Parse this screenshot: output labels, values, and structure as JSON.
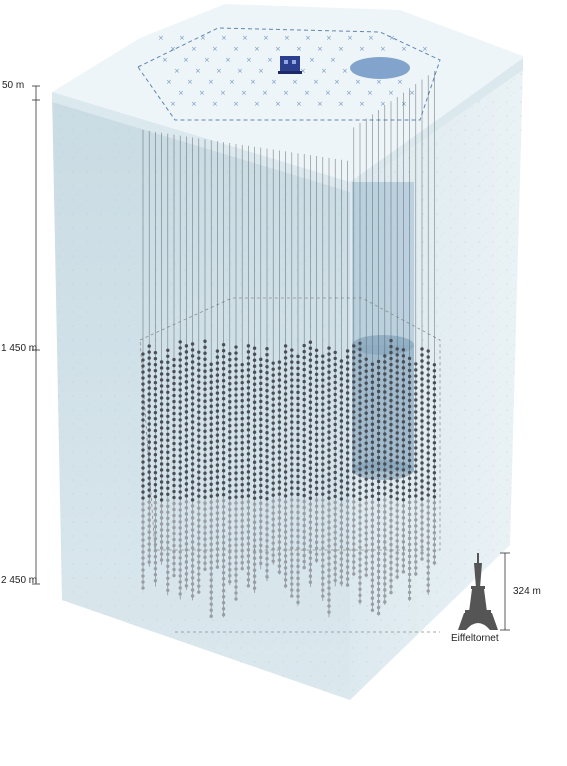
{
  "depth_scale": {
    "top_label": "50 m",
    "mid_label": "1 450 m",
    "bottom_label": "2 450 m"
  },
  "reference": {
    "height_label": "324 m",
    "name": "Eiffeltornet"
  },
  "colors": {
    "ice_face": "#d5e4ea",
    "ice_side": "#e6eff3",
    "snow": "#eef5f8",
    "deep_core": "#8fb1c8",
    "string_line": "#555a60",
    "dom_dark": "#4a4e54",
    "dom_light": "#9a9ea4",
    "surface_marker": "#6f95c4",
    "icetop_tank": "#6f95c4",
    "lab_building": "#2c3f8f",
    "tower": "#555555"
  },
  "icons": {
    "surface_station": "x-marker-icon",
    "lab": "counting-house-icon",
    "tower": "eiffel-tower-icon"
  }
}
